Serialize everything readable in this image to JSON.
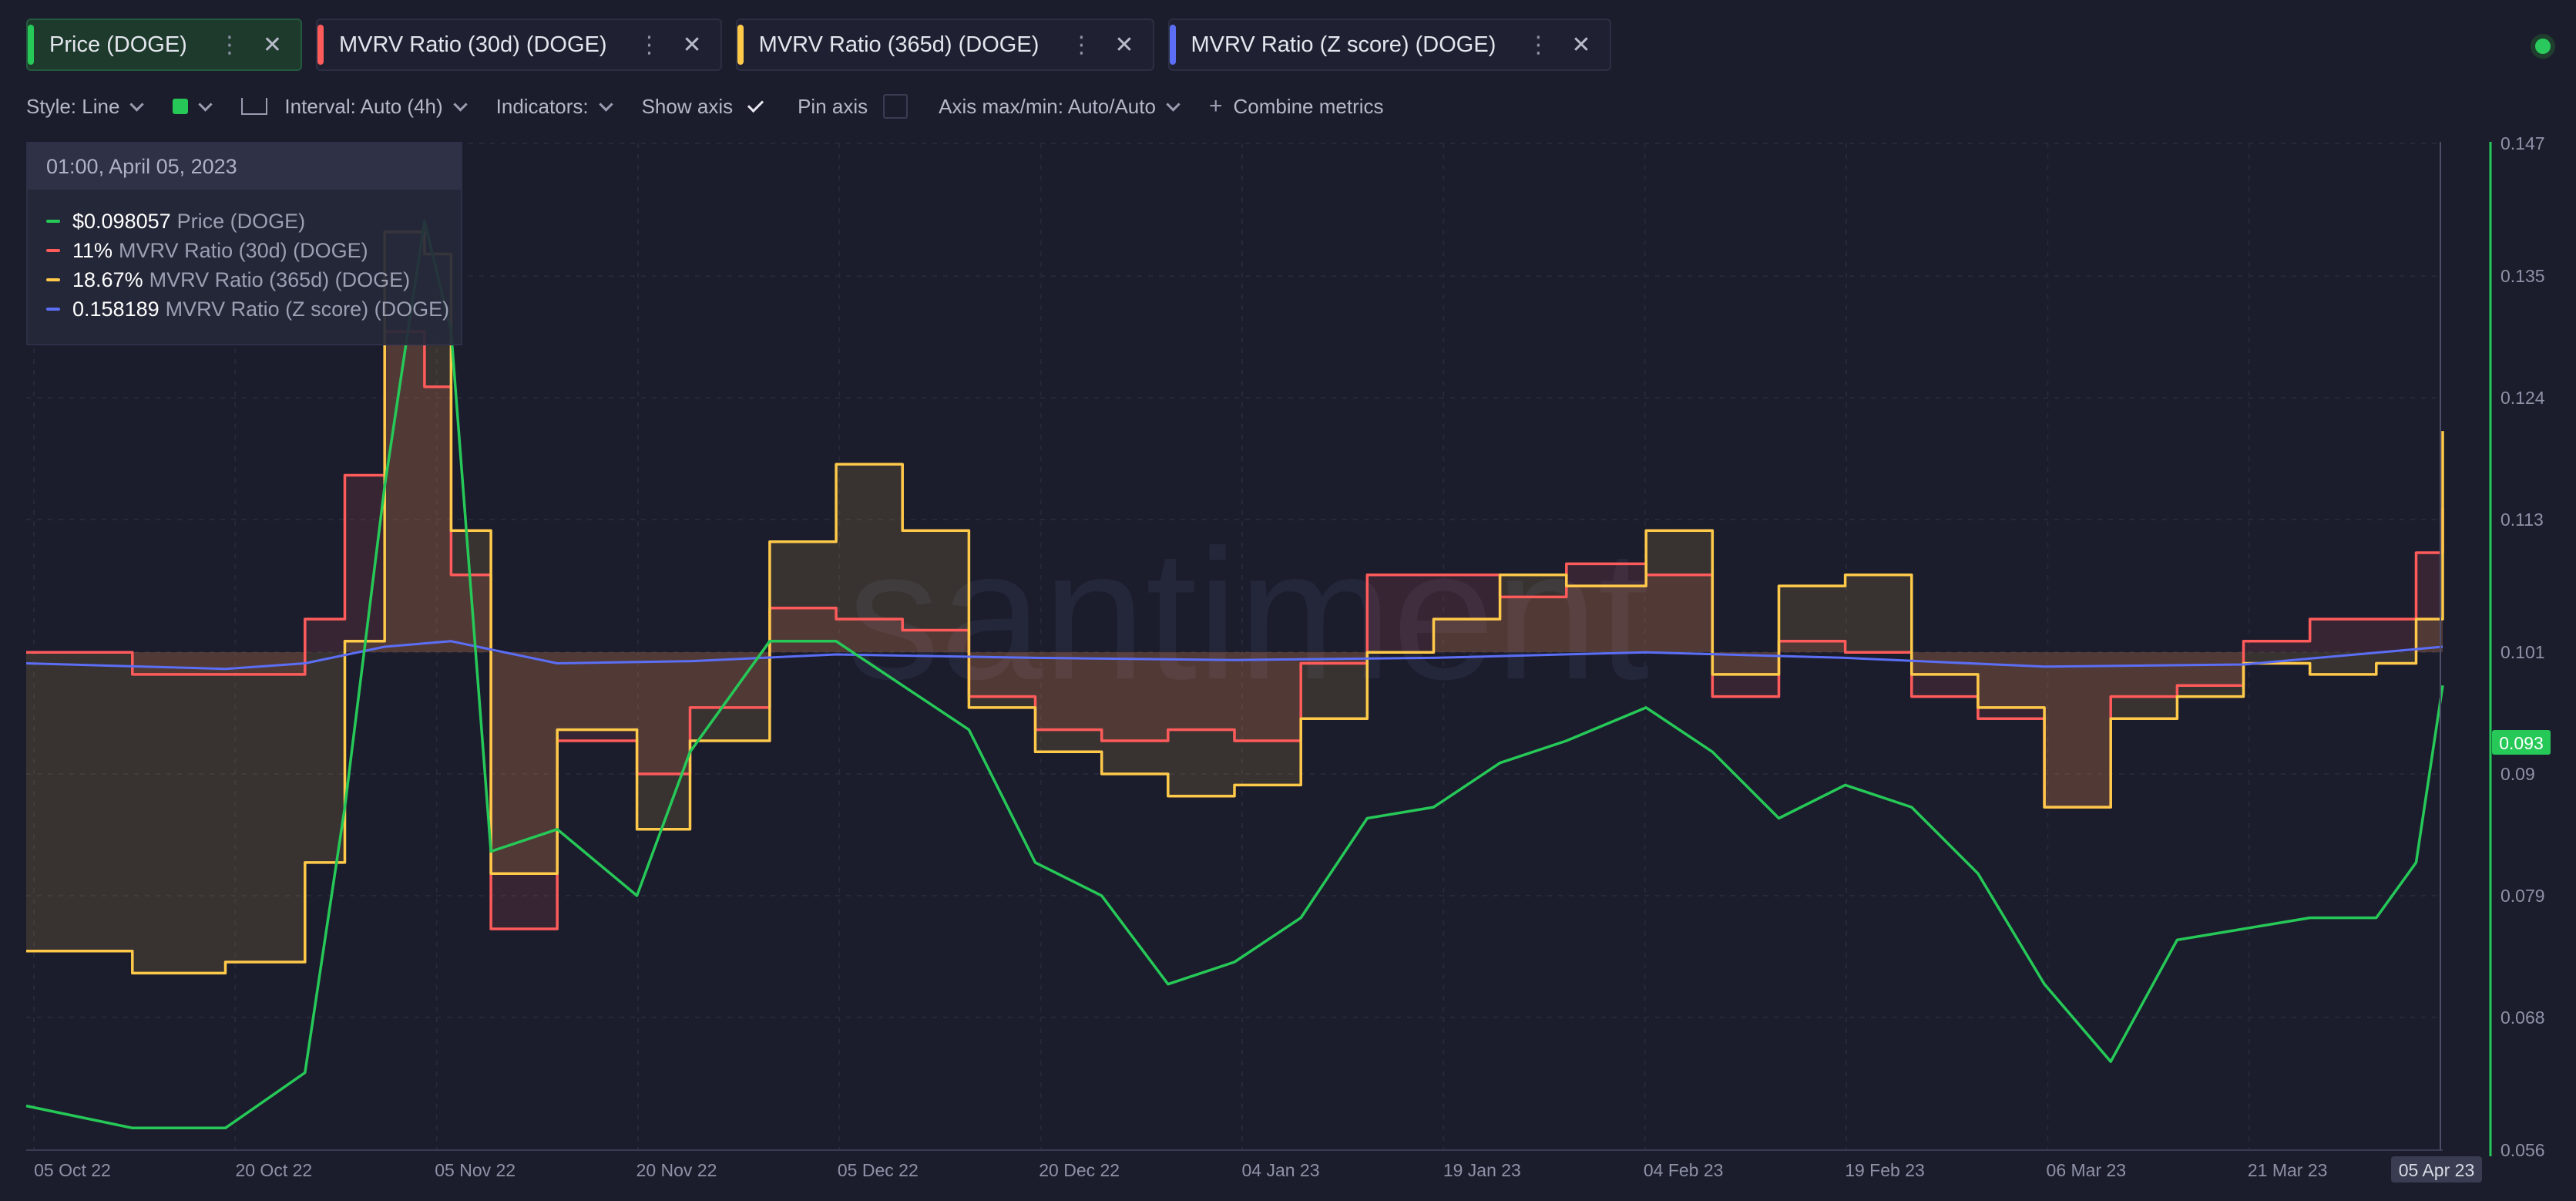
{
  "tabs": [
    {
      "label": "Price (DOGE)",
      "color": "#26c957",
      "active": true
    },
    {
      "label": "MVRV Ratio (30d) (DOGE)",
      "color": "#ff5b5b",
      "active": false
    },
    {
      "label": "MVRV Ratio (365d) (DOGE)",
      "color": "#ffc94a",
      "active": false
    },
    {
      "label": "MVRV Ratio (Z score) (DOGE)",
      "color": "#5b6ef5",
      "active": false
    }
  ],
  "toolbar": {
    "style": "Style: Line",
    "interval": "Interval: Auto (4h)",
    "indicators": "Indicators:",
    "show_axis": "Show axis",
    "pin_axis": "Pin axis",
    "axis_maxmin": "Axis max/min: Auto/Auto",
    "combine": "Combine metrics"
  },
  "watermark": "santiment",
  "tooltip": {
    "date": "01:00, April 05, 2023",
    "rows": [
      {
        "value": "$0.098057",
        "name": "Price (DOGE)",
        "color": "#26c957"
      },
      {
        "value": "11%",
        "name": "MVRV Ratio (30d) (DOGE)",
        "color": "#ff5b5b"
      },
      {
        "value": "18.67%",
        "name": "MVRV Ratio (365d) (DOGE)",
        "color": "#ffc94a"
      },
      {
        "value": "0.158189",
        "name": "MVRV Ratio (Z score) (DOGE)",
        "color": "#5b6ef5"
      }
    ]
  },
  "chart_data": {
    "type": "line",
    "x_labels": [
      "05 Oct 22",
      "20 Oct 22",
      "05 Nov 22",
      "20 Nov 22",
      "05 Dec 22",
      "20 Dec 22",
      "04 Jan 23",
      "19 Jan 23",
      "04 Feb 23",
      "19 Feb 23",
      "06 Mar 23",
      "21 Mar 23",
      "05 Apr 23"
    ],
    "cursor_label": "05 Apr 23",
    "y_ticks": [
      "0.147",
      "0.135",
      "0.124",
      "0.113",
      "0.101",
      "0.09",
      "0.079",
      "0.068",
      "0.056"
    ],
    "ylim": [
      0.056,
      0.147
    ],
    "current_value": "0.093",
    "series": [
      {
        "name": "Price (DOGE)",
        "color": "#26c957",
        "x": [
          "2022-10-05",
          "2022-10-13",
          "2022-10-20",
          "2022-10-26",
          "2022-10-29",
          "2022-11-01",
          "2022-11-04",
          "2022-11-06",
          "2022-11-09",
          "2022-11-14",
          "2022-11-20",
          "2022-11-24",
          "2022-11-30",
          "2022-12-05",
          "2022-12-10",
          "2022-12-15",
          "2022-12-20",
          "2022-12-25",
          "2022-12-30",
          "2023-01-04",
          "2023-01-09",
          "2023-01-14",
          "2023-01-19",
          "2023-01-24",
          "2023-01-29",
          "2023-02-04",
          "2023-02-09",
          "2023-02-14",
          "2023-02-19",
          "2023-02-24",
          "2023-03-01",
          "2023-03-06",
          "2023-03-11",
          "2023-03-16",
          "2023-03-21",
          "2023-03-26",
          "2023-03-31",
          "2023-04-03",
          "2023-04-05"
        ],
        "values": [
          0.06,
          0.058,
          0.058,
          0.063,
          0.087,
          0.116,
          0.14,
          0.13,
          0.083,
          0.085,
          0.079,
          0.092,
          0.102,
          0.102,
          0.098,
          0.094,
          0.082,
          0.079,
          0.071,
          0.073,
          0.077,
          0.086,
          0.087,
          0.091,
          0.093,
          0.096,
          0.092,
          0.086,
          0.089,
          0.087,
          0.081,
          0.071,
          0.064,
          0.075,
          0.076,
          0.077,
          0.077,
          0.082,
          0.098
        ]
      },
      {
        "name": "MVRV Ratio (30d) (DOGE)",
        "color": "#ff5b5b",
        "x": [
          "2022-10-05",
          "2022-10-13",
          "2022-10-20",
          "2022-10-26",
          "2022-10-29",
          "2022-11-01",
          "2022-11-04",
          "2022-11-06",
          "2022-11-09",
          "2022-11-14",
          "2022-11-20",
          "2022-11-24",
          "2022-11-30",
          "2022-12-05",
          "2022-12-10",
          "2022-12-15",
          "2022-12-20",
          "2022-12-25",
          "2022-12-30",
          "2023-01-04",
          "2023-01-09",
          "2023-01-14",
          "2023-01-19",
          "2023-01-24",
          "2023-01-29",
          "2023-02-04",
          "2023-02-09",
          "2023-02-14",
          "2023-02-19",
          "2023-02-24",
          "2023-03-01",
          "2023-03-06",
          "2023-03-11",
          "2023-03-16",
          "2023-03-21",
          "2023-03-26",
          "2023-03-31",
          "2023-04-03",
          "2023-04-05"
        ],
        "values": [
          0.101,
          0.099,
          0.099,
          0.104,
          0.117,
          0.13,
          0.125,
          0.108,
          0.076,
          0.093,
          0.09,
          0.096,
          0.105,
          0.104,
          0.103,
          0.097,
          0.094,
          0.093,
          0.094,
          0.093,
          0.1,
          0.108,
          0.108,
          0.106,
          0.109,
          0.108,
          0.097,
          0.102,
          0.101,
          0.097,
          0.095,
          0.087,
          0.097,
          0.098,
          0.102,
          0.104,
          0.104,
          0.11,
          0.114
        ]
      },
      {
        "name": "MVRV Ratio (365d) (DOGE)",
        "color": "#ffc94a",
        "x": [
          "2022-10-05",
          "2022-10-13",
          "2022-10-20",
          "2022-10-26",
          "2022-10-29",
          "2022-11-01",
          "2022-11-04",
          "2022-11-06",
          "2022-11-09",
          "2022-11-14",
          "2022-11-20",
          "2022-11-24",
          "2022-11-30",
          "2022-12-05",
          "2022-12-10",
          "2022-12-15",
          "2022-12-20",
          "2022-12-25",
          "2022-12-30",
          "2023-01-04",
          "2023-01-09",
          "2023-01-14",
          "2023-01-19",
          "2023-01-24",
          "2023-01-29",
          "2023-02-04",
          "2023-02-09",
          "2023-02-14",
          "2023-02-19",
          "2023-02-24",
          "2023-03-01",
          "2023-03-06",
          "2023-03-11",
          "2023-03-16",
          "2023-03-21",
          "2023-03-26",
          "2023-03-31",
          "2023-04-03",
          "2023-04-05"
        ],
        "values": [
          0.074,
          0.072,
          0.073,
          0.082,
          0.102,
          0.139,
          0.137,
          0.112,
          0.081,
          0.094,
          0.085,
          0.093,
          0.111,
          0.118,
          0.112,
          0.096,
          0.092,
          0.09,
          0.088,
          0.089,
          0.095,
          0.101,
          0.104,
          0.108,
          0.107,
          0.112,
          0.099,
          0.107,
          0.108,
          0.099,
          0.096,
          0.087,
          0.095,
          0.097,
          0.1,
          0.099,
          0.1,
          0.104,
          0.121
        ]
      },
      {
        "name": "MVRV Ratio (Z score) (DOGE)",
        "color": "#5b6ef5",
        "x": [
          "2022-10-05",
          "2022-10-20",
          "2022-10-26",
          "2022-11-01",
          "2022-11-06",
          "2022-11-14",
          "2022-11-24",
          "2022-12-05",
          "2022-12-20",
          "2023-01-04",
          "2023-01-19",
          "2023-02-04",
          "2023-02-19",
          "2023-03-06",
          "2023-03-21",
          "2023-04-05"
        ],
        "values": [
          0.1,
          0.0995,
          0.1,
          0.1015,
          0.102,
          0.1,
          0.1002,
          0.1008,
          0.1005,
          0.1003,
          0.1005,
          0.101,
          0.1005,
          0.0997,
          0.0999,
          0.1015
        ]
      }
    ]
  }
}
